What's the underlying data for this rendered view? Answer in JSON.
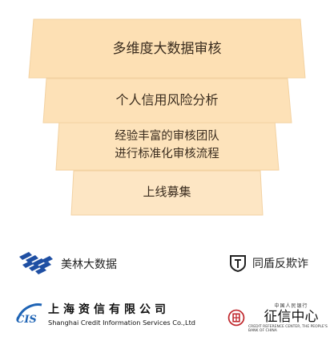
{
  "funnel": {
    "tier1": "多维度大数据审核",
    "tier2": "个人信用风险分析",
    "tier3_line1": "经验丰富的审核团队",
    "tier3_line2": "进行标准化审核流程",
    "tier4": "上线募集"
  },
  "partners": {
    "meilin": "美林大数据",
    "tongdun": "同盾反欺诈",
    "shanghai_cn": "上海资信有限公司",
    "shanghai_en": "Shanghai Credit Information Services Co.,Ltd",
    "shanghai_mark": "CIS",
    "zhengxin_top": "中国人民银行",
    "zhengxin_name": "征信中心",
    "zhengxin_en": "CREDIT REFERENCE CENTER, THE PEOPLE'S BANK OF CHINA"
  },
  "colors": {
    "tier_fill": "#fde0b4",
    "tier_fill_light": "#fde6c4",
    "tier_shadow": "#f6d3a0"
  }
}
